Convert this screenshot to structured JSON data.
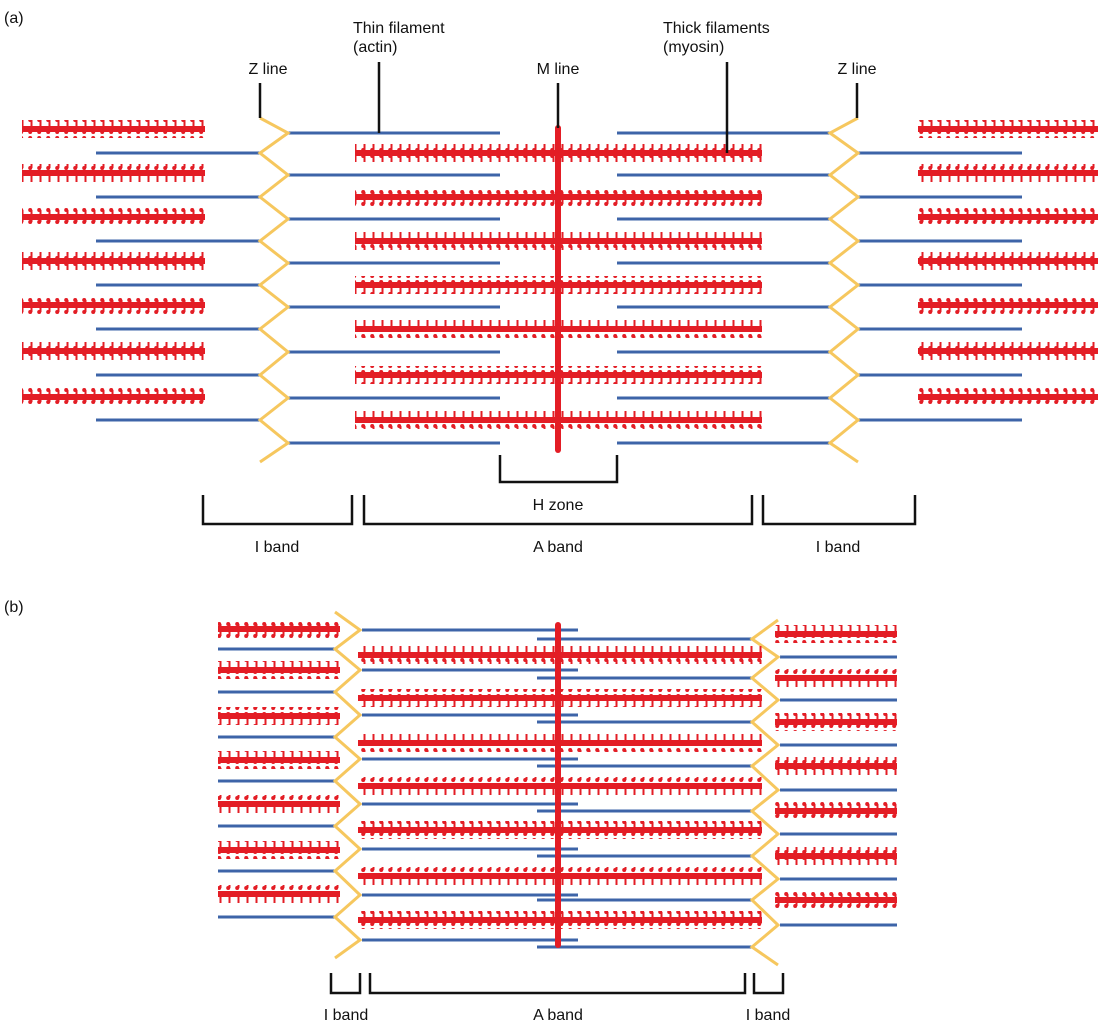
{
  "panel_a": {
    "tag": "(a)",
    "labels": {
      "z_line_left": "Z line",
      "thin_filament_1": "Thin filament",
      "thin_filament_2": "(actin)",
      "m_line": "M line",
      "thick_filament_1": "Thick filaments",
      "thick_filament_2": "(myosin)",
      "z_line_right": "Z line",
      "h_zone": "H zone",
      "i_band_left": "I band",
      "a_band": "A band",
      "i_band_right": "I band"
    }
  },
  "panel_b": {
    "tag": "(b)",
    "labels": {
      "i_band_left": "I band",
      "a_band": "A band",
      "i_band_right": "I band"
    }
  },
  "colors": {
    "myosin": "#e31d25",
    "actin": "#3d64a8",
    "z_line": "#f6c75e",
    "bracket": "#111111"
  }
}
